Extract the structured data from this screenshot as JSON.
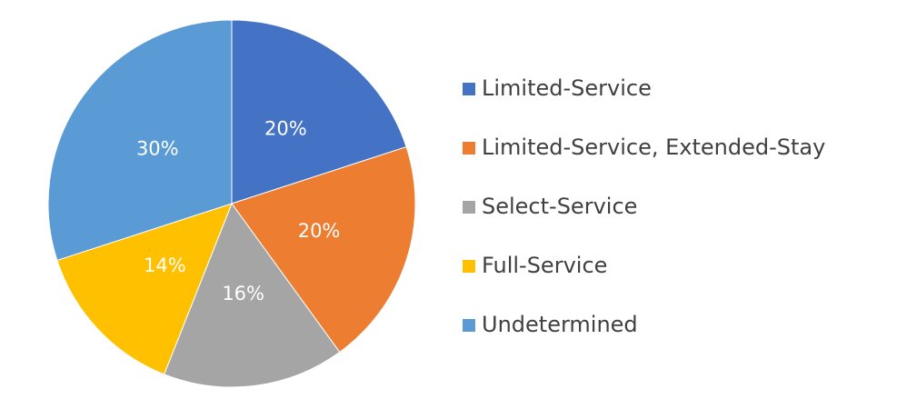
{
  "chart_data": {
    "type": "pie",
    "categories": [
      "Limited-Service",
      "Limited-Service, Extended-Stay",
      "Select-Service",
      "Full-Service",
      "Undetermined"
    ],
    "values": [
      20,
      20,
      16,
      14,
      30
    ],
    "value_labels": [
      "20%",
      "20%",
      "16%",
      "14%",
      "30%"
    ],
    "colors": [
      "#4472c4",
      "#ed7d31",
      "#a5a5a5",
      "#ffc000",
      "#5b9bd5"
    ],
    "legend": "right"
  }
}
